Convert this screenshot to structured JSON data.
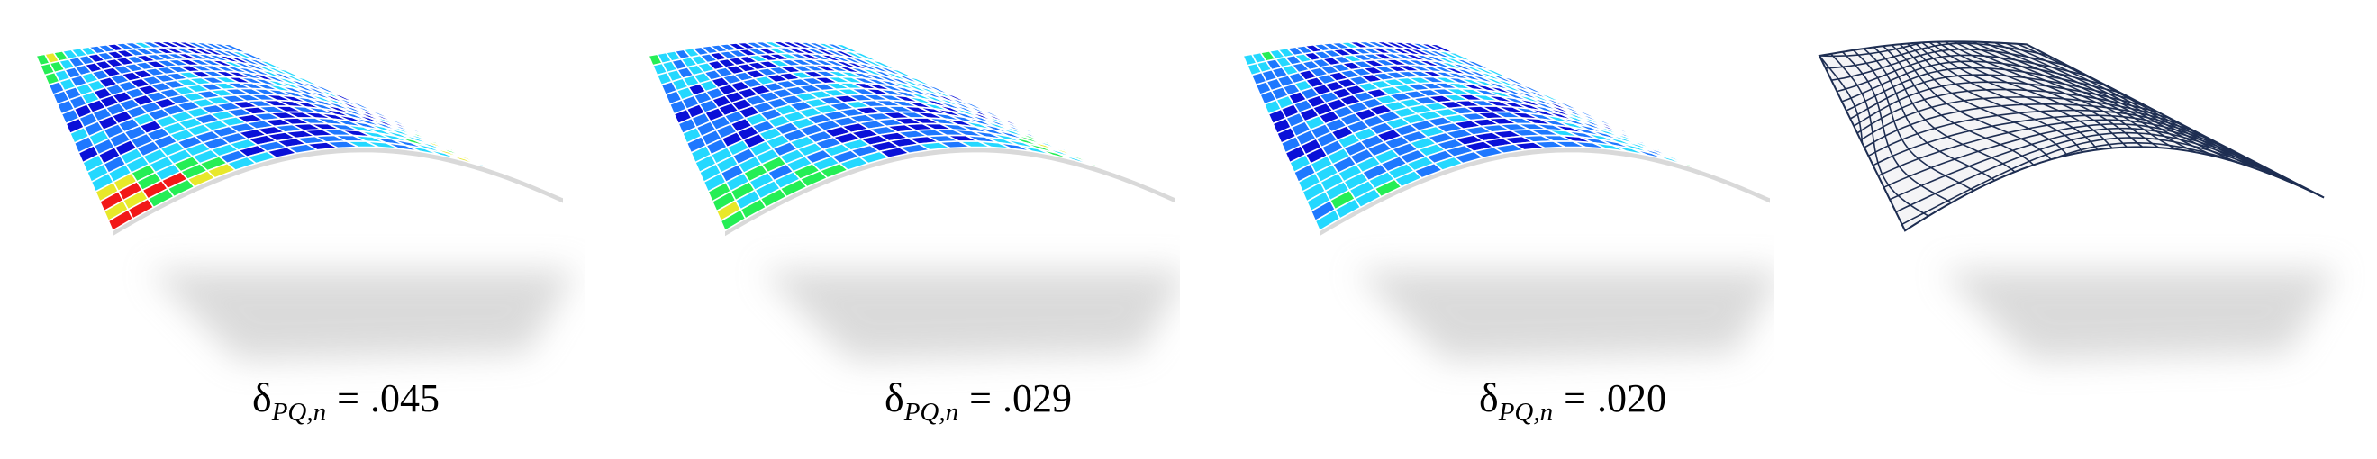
{
  "panels": [
    {
      "id": "p1",
      "delta_symbol": "δ",
      "subscript": "PQ,n",
      "equals": "=",
      "value": ".045",
      "max_deviation": "high"
    },
    {
      "id": "p2",
      "delta_symbol": "δ",
      "subscript": "PQ,n",
      "equals": "=",
      "value": ".029",
      "max_deviation": "medium"
    },
    {
      "id": "p3",
      "delta_symbol": "δ",
      "subscript": "PQ,n",
      "equals": "=",
      "value": ".020",
      "max_deviation": "low"
    },
    {
      "id": "p4",
      "style": "wireframe"
    }
  ],
  "colors": {
    "low": "#0a10d8",
    "mid": "#1e78ff",
    "cyan": "#24d8ff",
    "green": "#25ee55",
    "yellow": "#e8e82a",
    "red": "#f21818",
    "grid": "#ffffff",
    "wire": "#1e2e52",
    "shadow": "#bdbdbd"
  },
  "colormap": [
    "low",
    "mid",
    "cyan",
    "green",
    "yellow",
    "red"
  ]
}
